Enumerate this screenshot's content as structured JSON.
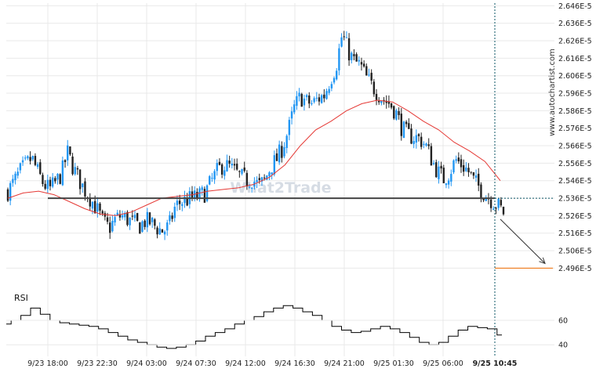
{
  "colors": {
    "up": "#2196f3",
    "down": "#222222",
    "ma": "#e53935",
    "support": "#444444",
    "target": "#ef6c00",
    "arrow": "#333333",
    "grid": "#e9e9e9",
    "rsi": "#000000",
    "background": "#ffffff"
  },
  "watermark": {
    "text": "What2Trade",
    "side_text": "www.autochartist.com"
  },
  "rsi_label": "RSI",
  "chart_data": {
    "type": "candlestick",
    "x_tick_labels": [
      "9/23 18:00",
      "9/23 22:30",
      "9/24 03:00",
      "9/24 07:30",
      "9/24 12:00",
      "9/24 16:30",
      "9/24 21:00",
      "9/25 01:30",
      "9/25 06:00",
      "9/25 10:45"
    ],
    "y_tick_labels": [
      "2.646E-5",
      "2.636E-5",
      "2.626E-5",
      "2.616E-5",
      "2.606E-5",
      "2.596E-5",
      "2.586E-5",
      "2.576E-5",
      "2.566E-5",
      "2.556E-5",
      "2.546E-5",
      "2.536E-5",
      "2.526E-5",
      "2.516E-5",
      "2.506E-5",
      "2.496E-5"
    ],
    "ylim": [
      2.4935e-05,
      2.6475e-05
    ],
    "support_level": 2.536e-05,
    "current_price": 2.536e-05,
    "target_price": 2.496e-05,
    "close_path": [
      2.54e-05,
      2.545e-05,
      2.551e-05,
      2.555e-05,
      2.559e-05,
      2.551e-05,
      2.544e-05,
      2.541e-05,
      2.545e-05,
      2.55e-05,
      2.562e-05,
      2.553e-05,
      2.546e-05,
      2.54e-05,
      2.535e-05,
      2.529e-05,
      2.522e-05,
      2.519e-05,
      2.524e-05,
      2.526e-05,
      2.524e-05,
      2.522e-05,
      2.52e-05,
      2.523e-05,
      2.522e-05,
      2.519e-05,
      2.517e-05,
      2.52e-05,
      2.531e-05,
      2.534e-05,
      2.535e-05,
      2.536e-05,
      2.537e-05,
      2.539e-05,
      2.545e-05,
      2.551e-05,
      2.555e-05,
      2.554e-05,
      2.551e-05,
      2.548e-05,
      2.546e-05,
      2.547e-05,
      2.543e-05,
      2.546e-05,
      2.554e-05,
      2.558e-05,
      2.565e-05,
      2.575e-05,
      2.588e-05,
      2.594e-05,
      2.591e-05,
      2.59e-05,
      2.593e-05,
      2.595e-05,
      2.604e-05,
      2.612e-05,
      2.63e-05,
      2.62e-05,
      2.614e-05,
      2.612e-05,
      2.605e-05,
      2.6e-05,
      2.596e-05,
      2.592e-05,
      2.59e-05,
      2.585e-05,
      2.576e-05,
      2.572e-05,
      2.571e-05,
      2.57e-05,
      2.566e-05,
      2.558e-05,
      2.551e-05,
      2.547e-05,
      2.551e-05,
      2.558e-05,
      2.555e-05,
      2.552e-05,
      2.546e-05,
      2.542e-05,
      2.538e-05,
      2.535e-05,
      2.532e-05,
      2.528e-05
    ],
    "ma_path": [
      2.536e-05,
      2.539e-05,
      2.54e-05,
      2.538e-05,
      2.534e-05,
      2.53e-05,
      2.527e-05,
      2.526e-05,
      2.528e-05,
      2.532e-05,
      2.536e-05,
      2.537e-05,
      2.538e-05,
      2.54e-05,
      2.541e-05,
      2.542e-05,
      2.544e-05,
      2.548e-05,
      2.555e-05,
      2.566e-05,
      2.575e-05,
      2.58e-05,
      2.586e-05,
      2.59e-05,
      2.592e-05,
      2.591e-05,
      2.586e-05,
      2.58e-05,
      2.575e-05,
      2.568e-05,
      2.563e-05,
      2.557e-05,
      2.546e-05
    ],
    "rsi": {
      "y_tick_labels": [
        "60",
        "40"
      ],
      "ylim": [
        35,
        85
      ],
      "values": [
        57,
        60,
        64,
        70,
        65,
        60,
        58,
        57,
        56,
        55,
        53,
        50,
        47,
        44,
        42,
        40,
        38,
        37,
        38,
        40,
        43,
        47,
        50,
        53,
        57,
        60,
        63,
        67,
        70,
        72,
        70,
        67,
        64,
        60,
        55,
        52,
        50,
        51,
        53,
        55,
        53,
        50,
        46,
        42,
        40,
        42,
        47,
        52,
        55,
        54,
        53,
        48
      ]
    }
  }
}
